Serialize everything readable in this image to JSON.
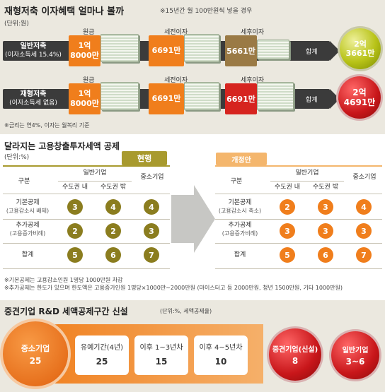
{
  "s1": {
    "title": "재형저축 이자혜택 얼마나 볼까",
    "sub": "※15년간 월 100만원씩 넣을 경우",
    "unit": "(단위:원)",
    "cols": [
      "원금",
      "세전이자",
      "세후이자"
    ],
    "rows": [
      {
        "label1": "일반저축",
        "label2": "(이자소득세 15.4%)",
        "principal": "1억\n8000만",
        "pretax": "6691만",
        "aftertax": "5661만",
        "total_lbl": "합계",
        "total": "2억\n3661만"
      },
      {
        "label1": "재형저축",
        "label2": "(이자소득세 없음)",
        "principal": "1억\n8000만",
        "pretax": "6691만",
        "aftertax": "6691만",
        "total_lbl": "합계",
        "total": "2억\n4691만"
      }
    ],
    "footnote": "※금리는 연4%, 이자는 월복리 기준"
  },
  "s2": {
    "title": "달라지는 고용창출투자세액 공제",
    "unit": "(단위:%)",
    "current_tag": "현행",
    "revised_tag": "개정안",
    "hdr": {
      "gubun": "구분",
      "general": "일반기업",
      "in": "수도권 내",
      "out": "수도권 밖",
      "sme": "중소기업"
    },
    "left": [
      {
        "l1": "기본공제",
        "l2": "(고용감소시 배제)",
        "v": [
          "3",
          "4",
          "4"
        ]
      },
      {
        "l1": "추가공제",
        "l2": "(고용증가비례)",
        "v": [
          "2",
          "2",
          "3"
        ]
      },
      {
        "l1": "합계",
        "l2": "",
        "v": [
          "5",
          "6",
          "7"
        ]
      }
    ],
    "right": [
      {
        "l1": "기본공제",
        "l2": "(고용감소시 축소)",
        "v": [
          "2",
          "3",
          "4"
        ]
      },
      {
        "l1": "추가공제",
        "l2": "(고용증가비례)",
        "v": [
          "3",
          "3",
          "3"
        ]
      },
      {
        "l1": "합계",
        "l2": "",
        "v": [
          "5",
          "6",
          "7"
        ]
      }
    ],
    "notes": [
      "※기본공제는 고용감소인원 1명당 1000만원 차감",
      "※추가공제는 한도가 있으며 한도액은 고용증가인원 1명당×1000만~2000만원 (마이스터고 등 2000만원, 청년 1500만원, 기타 1000만원)"
    ]
  },
  "s3": {
    "title": "중견기업 R&D 세액공제구간 신설",
    "unit": "(단위:%, 세액공제율)",
    "sme": {
      "label": "중소기업",
      "value": "25"
    },
    "periods": [
      {
        "label": "유예기간(4년)",
        "value": "25"
      },
      {
        "label": "이후 1~3년차",
        "value": "15"
      },
      {
        "label": "이후 4~5년차",
        "value": "10"
      }
    ],
    "mid": {
      "label": "중견기업(신설)",
      "value": "8"
    },
    "gen": {
      "label": "일반기업",
      "value": "3~6"
    }
  }
}
